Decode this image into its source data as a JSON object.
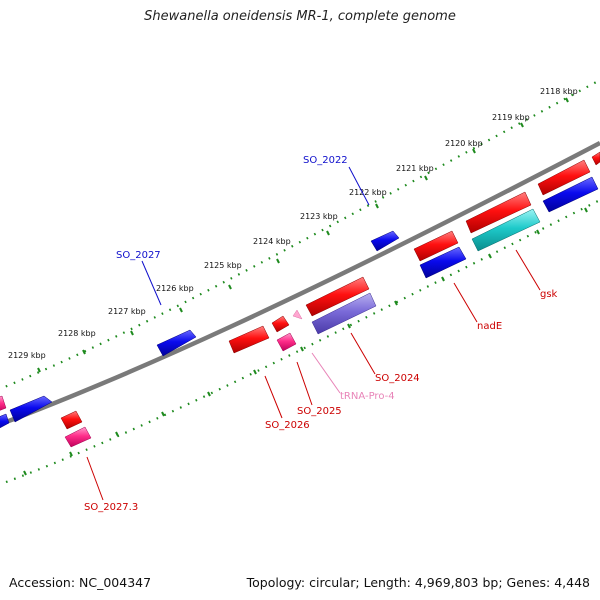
{
  "header": {
    "title": "Shewanella oneidensis MR-1, complete genome"
  },
  "footer": {
    "accession": "Accession: NC_004347",
    "summary": "Topology: circular; Length: 4,969,803 bp; Genes: 4,448"
  },
  "colors": {
    "backbone": "#808080",
    "forward_gene": "#ff0000",
    "reverse_gene": "#0000ee",
    "rna_gene": "#ff2d8a",
    "tick_dots": "#1e8a1e",
    "label_blue": "#1010cc",
    "label_red": "#cc0000",
    "label_pink": "#e884b8"
  },
  "ruler": {
    "ticks": [
      {
        "label": "2118 kbp"
      },
      {
        "label": "2119 kbp"
      },
      {
        "label": "2120 kbp"
      },
      {
        "label": "2121 kbp"
      },
      {
        "label": "2122 kbp"
      },
      {
        "label": "2123 kbp"
      },
      {
        "label": "2124 kbp"
      },
      {
        "label": "2125 kbp"
      },
      {
        "label": "2126 kbp"
      },
      {
        "label": "2127 kbp"
      },
      {
        "label": "2128 kbp"
      },
      {
        "label": "2129 kbp"
      }
    ]
  },
  "genes": [
    {
      "label": "SO_2022",
      "color_key": "label_blue"
    },
    {
      "label": "SO_2027",
      "color_key": "label_blue"
    },
    {
      "label": "gsk",
      "color_key": "label_red"
    },
    {
      "label": "nadE",
      "color_key": "label_red"
    },
    {
      "label": "SO_2024",
      "color_key": "label_red"
    },
    {
      "label": "tRNA-Pro-4",
      "color_key": "label_pink"
    },
    {
      "label": "SO_2025",
      "color_key": "label_red"
    },
    {
      "label": "SO_2026",
      "color_key": "label_red"
    },
    {
      "label": "SO_2027.3",
      "color_key": "label_red"
    }
  ]
}
